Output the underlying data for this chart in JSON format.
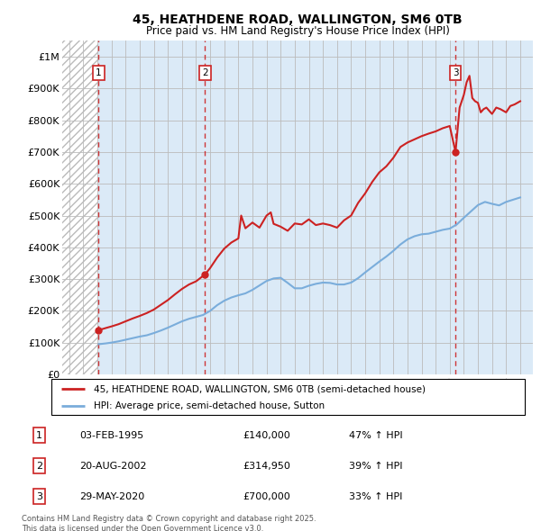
{
  "title": "45, HEATHDENE ROAD, WALLINGTON, SM6 0TB",
  "subtitle": "Price paid vs. HM Land Registry's House Price Index (HPI)",
  "ylim": [
    0,
    1050000
  ],
  "xlim_start": 1992.5,
  "xlim_end": 2025.9,
  "yticks": [
    0,
    100000,
    200000,
    300000,
    400000,
    500000,
    600000,
    700000,
    800000,
    900000,
    1000000
  ],
  "ytick_labels": [
    "£0",
    "£100K",
    "£200K",
    "£300K",
    "£400K",
    "£500K",
    "£600K",
    "£700K",
    "£800K",
    "£900K",
    "£1M"
  ],
  "xticks": [
    1993,
    1994,
    1995,
    1996,
    1997,
    1998,
    1999,
    2000,
    2001,
    2002,
    2003,
    2004,
    2005,
    2006,
    2007,
    2008,
    2009,
    2010,
    2011,
    2012,
    2013,
    2014,
    2015,
    2016,
    2017,
    2018,
    2019,
    2020,
    2021,
    2022,
    2023,
    2024,
    2025
  ],
  "sale_dates": [
    1995.09,
    2002.64,
    2020.41
  ],
  "sale_prices": [
    140000,
    314950,
    700000
  ],
  "sale_labels": [
    "1",
    "2",
    "3"
  ],
  "bg_hatch_end": 1995.09,
  "hpi_line_color": "#7aaddb",
  "price_line_color": "#cc2222",
  "grid_color": "#bbbbbb",
  "bg_main_color": "#dbeaf7",
  "legend_line1": "45, HEATHDENE ROAD, WALLINGTON, SM6 0TB (semi-detached house)",
  "legend_line2": "HPI: Average price, semi-detached house, Sutton",
  "table_rows": [
    {
      "num": "1",
      "date": "03-FEB-1995",
      "price": "£140,000",
      "hpi": "47% ↑ HPI"
    },
    {
      "num": "2",
      "date": "20-AUG-2002",
      "price": "£314,950",
      "hpi": "39% ↑ HPI"
    },
    {
      "num": "3",
      "date": "29-MAY-2020",
      "price": "£700,000",
      "hpi": "33% ↑ HPI"
    }
  ],
  "footer": "Contains HM Land Registry data © Crown copyright and database right 2025.\nThis data is licensed under the Open Government Licence v3.0.",
  "hpi_data_x": [
    1995.09,
    1995.3,
    1995.6,
    1996.0,
    1996.5,
    1997.0,
    1997.5,
    1998.0,
    1998.5,
    1999.0,
    1999.5,
    2000.0,
    2000.5,
    2001.0,
    2001.5,
    2002.0,
    2002.5,
    2003.0,
    2003.5,
    2004.0,
    2004.5,
    2005.0,
    2005.5,
    2006.0,
    2006.5,
    2007.0,
    2007.5,
    2008.0,
    2008.5,
    2009.0,
    2009.5,
    2010.0,
    2010.5,
    2011.0,
    2011.5,
    2012.0,
    2012.5,
    2013.0,
    2013.5,
    2014.0,
    2014.5,
    2015.0,
    2015.5,
    2016.0,
    2016.5,
    2017.0,
    2017.5,
    2018.0,
    2018.5,
    2019.0,
    2019.5,
    2020.0,
    2020.5,
    2021.0,
    2021.5,
    2022.0,
    2022.5,
    2023.0,
    2023.5,
    2024.0,
    2024.5,
    2025.0
  ],
  "hpi_data_y": [
    95000,
    96000,
    97500,
    100000,
    104000,
    109000,
    114000,
    119000,
    123000,
    130000,
    138000,
    147000,
    157000,
    167000,
    175000,
    181000,
    187000,
    200000,
    218000,
    232000,
    242000,
    249000,
    255000,
    266000,
    280000,
    294000,
    302000,
    304000,
    288000,
    271000,
    271000,
    279000,
    285000,
    289000,
    288000,
    283000,
    283000,
    289000,
    303000,
    321000,
    338000,
    355000,
    371000,
    389000,
    409000,
    425000,
    435000,
    441000,
    443000,
    449000,
    455000,
    459000,
    472000,
    493000,
    513000,
    533000,
    543000,
    537000,
    532000,
    543000,
    550000,
    557000
  ],
  "price_data_x": [
    1995.09,
    1995.3,
    1995.6,
    1996.0,
    1996.5,
    1997.0,
    1997.5,
    1998.0,
    1998.5,
    1999.0,
    1999.5,
    2000.0,
    2000.5,
    2001.0,
    2001.5,
    2002.0,
    2002.64,
    2003.0,
    2003.5,
    2004.0,
    2004.5,
    2005.0,
    2005.2,
    2005.5,
    2006.0,
    2006.5,
    2007.0,
    2007.3,
    2007.5,
    2008.0,
    2008.5,
    2009.0,
    2009.5,
    2010.0,
    2010.5,
    2011.0,
    2011.5,
    2012.0,
    2012.5,
    2013.0,
    2013.5,
    2014.0,
    2014.5,
    2015.0,
    2015.5,
    2016.0,
    2016.5,
    2017.0,
    2017.5,
    2018.0,
    2018.5,
    2019.0,
    2019.5,
    2020.0,
    2020.41,
    2020.7,
    2021.0,
    2021.2,
    2021.4,
    2021.6,
    2021.8,
    2022.0,
    2022.2,
    2022.4,
    2022.6,
    2022.8,
    2023.0,
    2023.3,
    2023.6,
    2024.0,
    2024.3,
    2024.6,
    2025.0
  ],
  "price_data_y": [
    140000,
    142000,
    146000,
    151000,
    158000,
    167000,
    176000,
    184000,
    193000,
    204000,
    219000,
    234000,
    252000,
    269000,
    283000,
    293000,
    314950,
    335000,
    368000,
    396000,
    415000,
    428000,
    500000,
    460000,
    478000,
    462000,
    500000,
    510000,
    474000,
    465000,
    452000,
    475000,
    472000,
    488000,
    470000,
    475000,
    470000,
    462000,
    485000,
    500000,
    540000,
    570000,
    606000,
    636000,
    655000,
    682000,
    716000,
    730000,
    740000,
    750000,
    758000,
    765000,
    775000,
    782000,
    700000,
    840000,
    880000,
    920000,
    940000,
    870000,
    860000,
    855000,
    825000,
    835000,
    840000,
    830000,
    820000,
    840000,
    835000,
    825000,
    845000,
    850000,
    860000
  ]
}
